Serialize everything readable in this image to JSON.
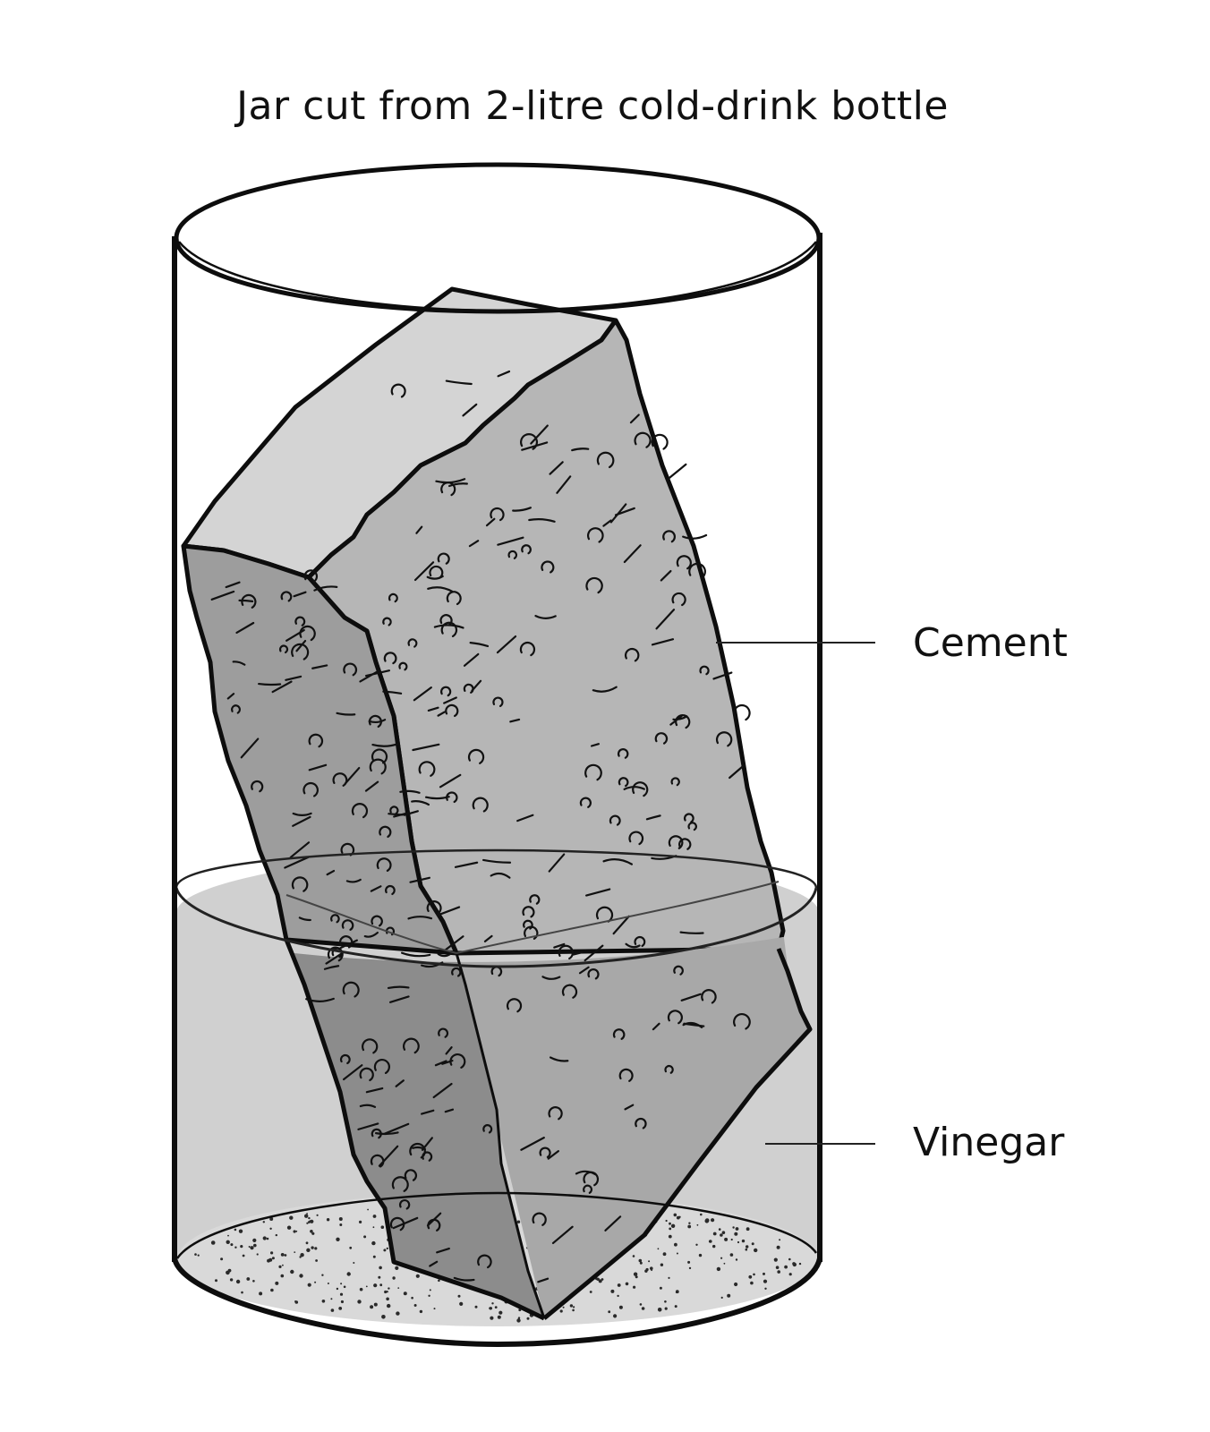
{
  "diagram": {
    "title": "Jar cut from 2-litre cold-drink bottle",
    "labels": {
      "cement": "Cement",
      "vinegar": "Vinegar"
    },
    "colors": {
      "outline": "#0d0d0d",
      "vinegar": "#cfcfcf",
      "cement_top": "#d3d3d3",
      "cement_front": "#b4b4b4",
      "cement_left": "#9a9a9a",
      "cement_submerged_front": "#a9a9a9",
      "cement_submerged_left": "#8a8a8a",
      "sediment_dots": "#333333"
    }
  }
}
